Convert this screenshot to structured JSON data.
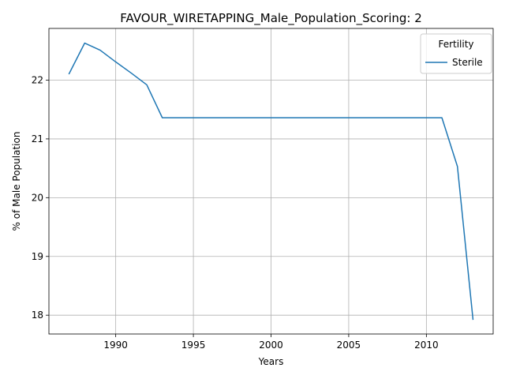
{
  "chart_data": {
    "type": "line",
    "title": "FAVOUR_WIRETAPPING_Male_Population_Scoring: 2",
    "xlabel": "Years",
    "ylabel": "% of Male Population",
    "xlim": [
      1985.7,
      2014.3
    ],
    "ylim": [
      17.68,
      22.88
    ],
    "xticks": [
      1990,
      1995,
      2000,
      2005,
      2010
    ],
    "yticks": [
      18,
      19,
      20,
      21,
      22
    ],
    "grid": true,
    "legend": {
      "title": "Fertility",
      "position": "top-right"
    },
    "series": [
      {
        "name": "Sterile",
        "color": "#1f77b4",
        "x": [
          1987,
          1988,
          1989,
          1990,
          1991,
          1992,
          1993,
          1994,
          1995,
          1996,
          1997,
          1998,
          1999,
          2000,
          2001,
          2002,
          2003,
          2004,
          2005,
          2006,
          2007,
          2008,
          2009,
          2010,
          2011,
          2012,
          2013
        ],
        "y": [
          22.11,
          22.63,
          22.51,
          22.31,
          22.12,
          21.92,
          21.36,
          21.36,
          21.36,
          21.36,
          21.36,
          21.36,
          21.36,
          21.36,
          21.36,
          21.36,
          21.36,
          21.36,
          21.36,
          21.36,
          21.36,
          21.36,
          21.36,
          21.36,
          21.36,
          20.53,
          17.93
        ]
      }
    ]
  }
}
